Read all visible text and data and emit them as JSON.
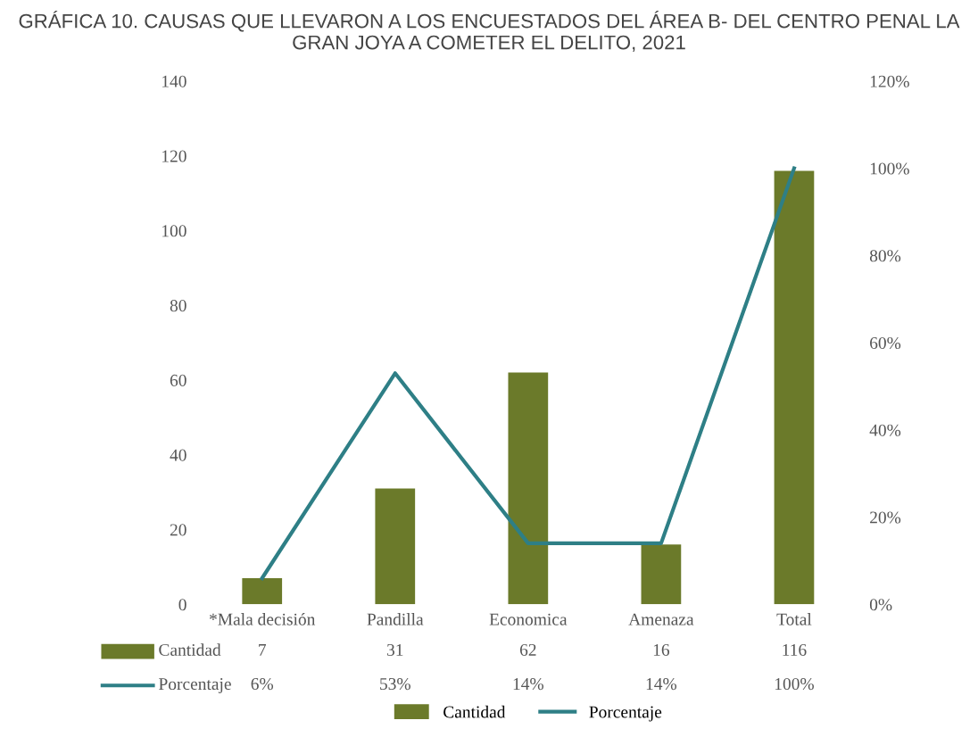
{
  "chart_data": {
    "type": "bar",
    "title": "GRÁFICA 10. CAUSAS QUE LLEVARON A LOS ENCUESTADOS DEL ÁREA B- DEL CENTRO PENAL LA GRAN JOYA A COMETER EL DELITO, 2021",
    "categories": [
      "*Mala decisión",
      "Pandilla",
      "Economica",
      "Amenaza",
      "Total"
    ],
    "series": [
      {
        "name": "Cantidad",
        "color": "#6b7a2a",
        "values": [
          7,
          31,
          62,
          16,
          116
        ],
        "value_labels": [
          "7",
          "31",
          "62",
          "16",
          "116"
        ]
      },
      {
        "name": "Porcentaje",
        "type": "line",
        "axis": "y2",
        "color": "#2e7f86",
        "values": [
          6,
          53,
          14,
          14,
          100
        ],
        "value_labels": [
          "6%",
          "53%",
          "14%",
          "14%",
          "100%"
        ]
      }
    ],
    "ylim": [
      0,
      140
    ],
    "yticks": [
      0,
      20,
      40,
      60,
      80,
      100,
      120,
      140
    ],
    "y2lim": [
      0,
      120
    ],
    "y2ticks": [
      {
        "value": 0,
        "label": "0%"
      },
      {
        "value": 20,
        "label": "20%"
      },
      {
        "value": 40,
        "label": "40%"
      },
      {
        "value": 60,
        "label": "60%"
      },
      {
        "value": 80,
        "label": "80%"
      },
      {
        "value": 100,
        "label": "100%"
      },
      {
        "value": 120,
        "label": "120%"
      }
    ],
    "legend": "bottom",
    "grid": false
  }
}
